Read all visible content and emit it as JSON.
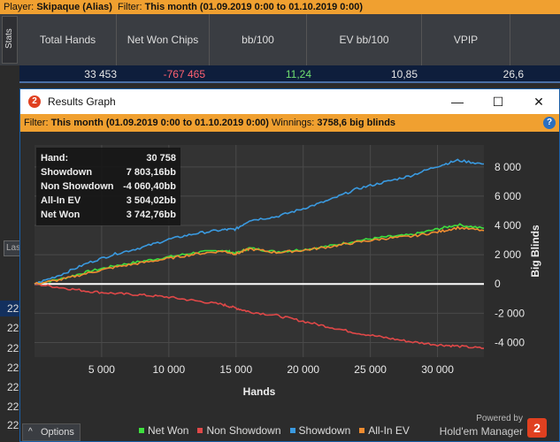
{
  "top_bar": {
    "player_label": "Player:",
    "player_value": "Skipaque (Alias)",
    "filter_label": "Filter:",
    "filter_value": "This month (01.09.2019 0:00 to 01.10.2019 0:00)"
  },
  "stats_table": {
    "tab_label": "Stats",
    "headers": [
      "Total Hands",
      "Net Won Chips",
      "bb/100",
      "EV bb/100",
      "VPIP"
    ],
    "values": [
      "33 453",
      "-767 465",
      "11,24",
      "10,85",
      "26,6"
    ],
    "value_colors": [
      "#e6e6e6",
      "#ff6070",
      "#70e070",
      "#e6e6e6",
      "#e6e6e6"
    ]
  },
  "left_panel": {
    "box_text": "Las",
    "row_numbers": [
      "22",
      "22",
      "22",
      "22",
      "22",
      "22",
      "22",
      "22"
    ]
  },
  "window": {
    "title": "Results Graph",
    "badge": "2",
    "minimize": "—",
    "maximize": "☐",
    "close": "✕"
  },
  "filter_bar": {
    "filter_label": "Filter:",
    "filter_value": "This month (01.09.2019 0:00 to 01.10.2019 0:00)",
    "winnings_label": "Winnings:",
    "winnings_value": "3758,6 big blinds",
    "help": "?"
  },
  "summary_box": {
    "rows": [
      {
        "label": "Hand:",
        "value": "30 758"
      },
      {
        "label": "Showdown",
        "value": "7 803,16bb"
      },
      {
        "label": "Non Showdown",
        "value": "-4 060,40bb"
      },
      {
        "label": "All-In EV",
        "value": "3 504,02bb"
      },
      {
        "label": "Net Won",
        "value": "3 742,76bb"
      }
    ]
  },
  "options": {
    "label": "Options",
    "chevron": "^"
  },
  "footer": {
    "powered_by": "Powered by",
    "product": "Hold'em Manager",
    "logo": "2"
  },
  "colors": {
    "net_won": "#3ee03e",
    "non_showdown": "#e04848",
    "showdown": "#3a9ae0",
    "all_in_ev": "#f08c30",
    "zero_line": "#ffffff",
    "accent_orange": "#f0a030"
  },
  "chart_data": {
    "type": "line",
    "xlabel": "Hands",
    "ylabel": "Big Blinds",
    "xlim": [
      0,
      33453
    ],
    "ylim": [
      -5000,
      9500
    ],
    "x_ticks": [
      5000,
      10000,
      15000,
      20000,
      25000,
      30000
    ],
    "x_tick_labels": [
      "5 000",
      "10 000",
      "15 000",
      "20 000",
      "25 000",
      "30 000"
    ],
    "y_ticks": [
      -4000,
      -2000,
      0,
      2000,
      4000,
      6000,
      8000
    ],
    "y_tick_labels": [
      "-4 000",
      "-2 000",
      "0",
      "2 000",
      "4 000",
      "6 000",
      "8 000"
    ],
    "legend_position": "bottom",
    "grid": true,
    "x": [
      0,
      2000,
      4000,
      6000,
      8000,
      10000,
      12000,
      14000,
      15000,
      16000,
      18000,
      20000,
      22000,
      24000,
      26000,
      28000,
      30000,
      31500,
      33453
    ],
    "series": [
      {
        "name": "Net Won",
        "color": "#3ee03e",
        "values": [
          0,
          350,
          850,
          1250,
          1550,
          1850,
          2150,
          2300,
          2100,
          2450,
          2200,
          2350,
          2600,
          2950,
          3200,
          3350,
          3750,
          4050,
          3800
        ]
      },
      {
        "name": "Non Showdown",
        "color": "#e04848",
        "values": [
          0,
          -250,
          -500,
          -650,
          -750,
          -900,
          -1150,
          -1400,
          -1650,
          -1900,
          -2150,
          -2550,
          -2950,
          -3350,
          -3650,
          -3950,
          -4150,
          -4250,
          -4400
        ]
      },
      {
        "name": "Showdown",
        "color": "#3a9ae0",
        "values": [
          0,
          650,
          1450,
          2050,
          2500,
          3050,
          3450,
          3700,
          3750,
          4350,
          4600,
          5150,
          5750,
          6500,
          6950,
          7400,
          8050,
          8450,
          8200
        ]
      },
      {
        "name": "All-In EV",
        "color": "#f08c30",
        "values": [
          0,
          300,
          750,
          1150,
          1450,
          1750,
          2050,
          2250,
          2050,
          2400,
          2150,
          2300,
          2550,
          2850,
          3100,
          3250,
          3550,
          3850,
          3650
        ]
      }
    ]
  }
}
